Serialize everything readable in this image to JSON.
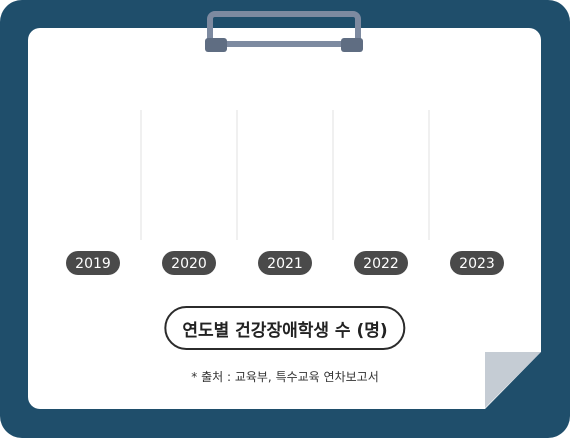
{
  "chart_data": {
    "type": "bar",
    "categories": [
      "2019",
      "2020",
      "2021",
      "2022",
      "2023"
    ],
    "series": [
      {
        "values": [
          null,
          null,
          null,
          null,
          null
        ]
      }
    ],
    "title": "연도별 건강장애학생 수 (명)",
    "source": "* 출처 : 교육부, 특수교육 연차보고서"
  },
  "colors": {
    "board": "#1f4e6b",
    "paper": "#ffffff",
    "year_pill": "#4a4a4a",
    "clip": "#7d8aa0",
    "curl": "#c5ccd4",
    "grid": "#e2e2e2"
  },
  "icons": {
    "clip": "clipboard-clip-icon",
    "curl": "page-curl-icon"
  }
}
